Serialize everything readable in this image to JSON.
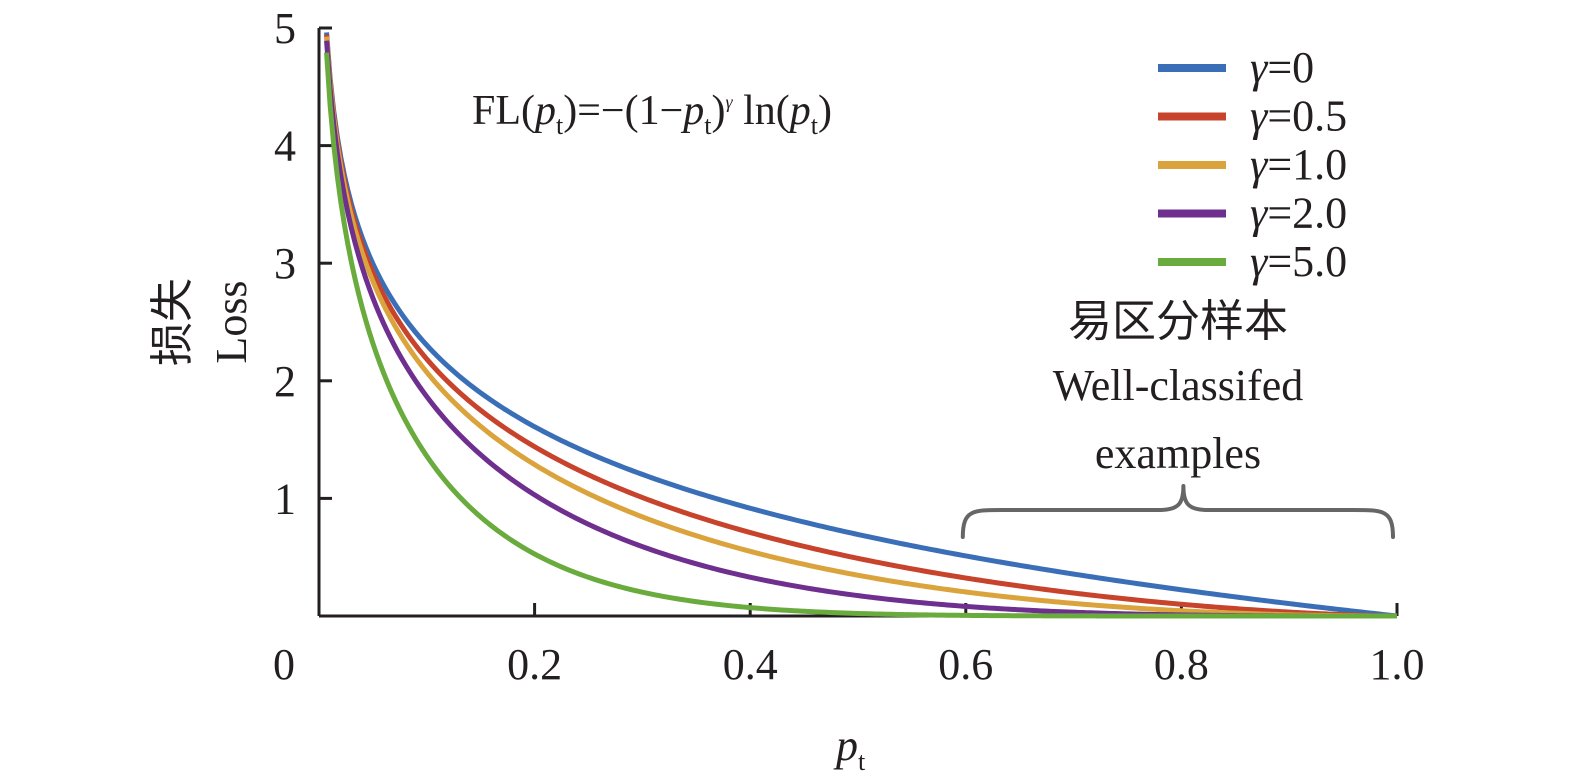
{
  "chart_data": {
    "type": "line",
    "title": "",
    "formula": {
      "prefix": "FL(",
      "var": "p",
      "sub": "t",
      "mid1": ")=−(1−",
      "mid2": ")",
      "exp": "γ",
      "mid3": " ln(",
      "suffix": ")"
    },
    "xlabel": {
      "var": "p",
      "sub": "t"
    },
    "ylabel": {
      "zh": "损失",
      "en": "Loss"
    },
    "xlim": [
      0,
      1.0
    ],
    "ylim": [
      0,
      5
    ],
    "x_ticks": [
      {
        "value": 0,
        "label": "0"
      },
      {
        "value": 0.2,
        "label": "0.2"
      },
      {
        "value": 0.4,
        "label": "0.4"
      },
      {
        "value": 0.6,
        "label": "0.6"
      },
      {
        "value": 0.8,
        "label": "0.8"
      },
      {
        "value": 1.0,
        "label": "1.0"
      }
    ],
    "y_ticks": [
      {
        "value": 1,
        "label": "1"
      },
      {
        "value": 2,
        "label": "2"
      },
      {
        "value": 3,
        "label": "3"
      },
      {
        "value": 4,
        "label": "4"
      },
      {
        "value": 5,
        "label": "5"
      }
    ],
    "grid": false,
    "legend_position": "top-right",
    "series": [
      {
        "name": "γ=0",
        "gamma": 0,
        "color": "#3a6fb8",
        "x": [
          0.007,
          0.02,
          0.05,
          0.1,
          0.15,
          0.2,
          0.3,
          0.4,
          0.5,
          0.6,
          0.7,
          0.8,
          0.9,
          1.0
        ],
        "y": [
          4.96,
          3.91,
          3.0,
          2.3,
          1.9,
          1.61,
          1.2,
          0.92,
          0.69,
          0.51,
          0.36,
          0.22,
          0.11,
          0.0
        ]
      },
      {
        "name": "γ=0.5",
        "gamma": 0.5,
        "color": "#c8432b",
        "x": [
          0.007,
          0.02,
          0.05,
          0.1,
          0.15,
          0.2,
          0.3,
          0.4,
          0.5,
          0.6,
          0.7,
          0.8,
          0.9,
          1.0
        ],
        "y": [
          4.94,
          3.87,
          2.92,
          2.18,
          1.75,
          1.44,
          1.01,
          0.71,
          0.49,
          0.32,
          0.2,
          0.1,
          0.03,
          0.0
        ]
      },
      {
        "name": "γ=1.0",
        "gamma": 1.0,
        "color": "#dba33c",
        "x": [
          0.007,
          0.02,
          0.05,
          0.1,
          0.15,
          0.2,
          0.3,
          0.4,
          0.5,
          0.6,
          0.7,
          0.8,
          0.9,
          1.0
        ],
        "y": [
          4.93,
          3.83,
          2.85,
          2.07,
          1.61,
          1.29,
          0.84,
          0.55,
          0.35,
          0.2,
          0.11,
          0.04,
          0.01,
          0.0
        ]
      },
      {
        "name": "γ=2.0",
        "gamma": 2.0,
        "color": "#6e2f8f",
        "x": [
          0.007,
          0.02,
          0.05,
          0.1,
          0.15,
          0.2,
          0.3,
          0.4,
          0.5,
          0.6,
          0.7,
          0.8,
          0.9,
          1.0
        ],
        "y": [
          4.89,
          3.76,
          2.71,
          1.87,
          1.37,
          1.03,
          0.59,
          0.33,
          0.17,
          0.08,
          0.03,
          0.01,
          0.0,
          0.0
        ]
      },
      {
        "name": "γ=5.0",
        "gamma": 5.0,
        "color": "#6aab3d",
        "x": [
          0.007,
          0.02,
          0.05,
          0.1,
          0.15,
          0.2,
          0.3,
          0.4,
          0.5,
          0.6,
          0.7,
          0.8,
          0.9,
          1.0
        ],
        "y": [
          4.79,
          3.53,
          2.32,
          1.36,
          0.84,
          0.53,
          0.2,
          0.07,
          0.02,
          0.0,
          0.0,
          0.0,
          0.0,
          0.0
        ]
      }
    ],
    "annotation": {
      "zh": "易区分样本",
      "en_line1": "Well-classifed",
      "en_line2": "examples",
      "x_range": [
        0.6,
        1.0
      ]
    }
  }
}
